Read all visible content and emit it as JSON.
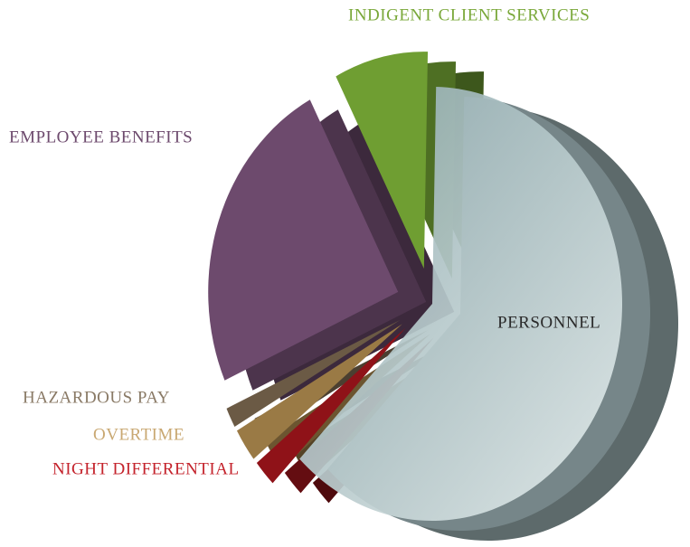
{
  "chart_data": {
    "type": "pie",
    "categories": [
      "PERSONNEL",
      "NIGHT DIFFERENTIAL",
      "OVERTIME",
      "HAZARDOUS PAY",
      "EMPLOYEE BENEFITS",
      "INDIGENT CLIENT SERVICES"
    ],
    "values": [
      62,
      2,
      2.5,
      1.5,
      24,
      8
    ],
    "colors": [
      "#a9c0c3",
      "#8f1218",
      "#9a7a45",
      "#6b5a45",
      "#6d4a6d",
      "#6f9e32"
    ]
  }
}
